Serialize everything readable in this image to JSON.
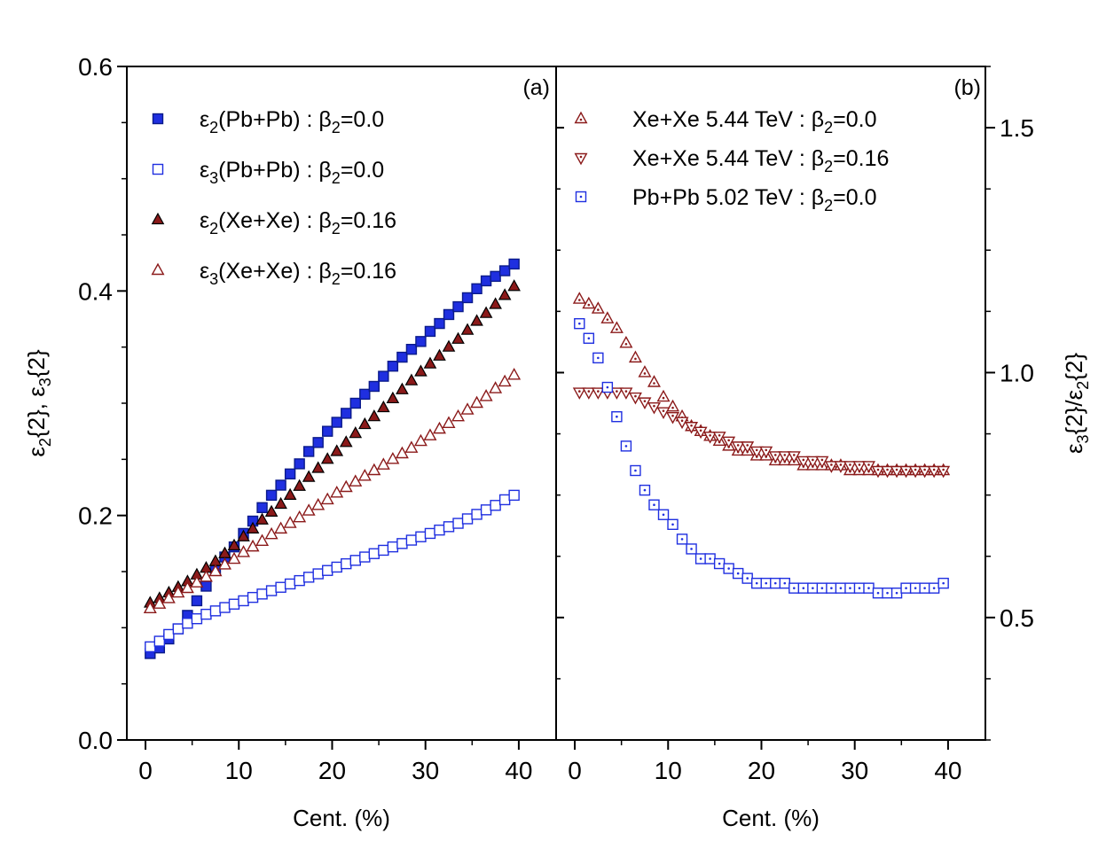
{
  "chart_data": [
    {
      "panel": "(a)",
      "type": "scatter",
      "xlabel": "Cent. (%)",
      "ylabel": {
        "main": "ε",
        "sub": "2",
        "mid": "{2}, ε",
        "sub2": "3",
        "tail": "{2}"
      },
      "xlim": [
        -2,
        44
      ],
      "ylim": [
        0.0,
        0.6
      ],
      "xticks": [
        0,
        10,
        20,
        30,
        40
      ],
      "xtick_labels": [
        "0",
        "10",
        "20",
        "30",
        "40"
      ],
      "yticks": [
        0.0,
        0.2,
        0.4,
        0.6
      ],
      "ytick_labels": [
        "0.0",
        "0.2",
        "0.4",
        "0.6"
      ],
      "legend_position": "top-left",
      "series": [
        {
          "name": "ε2(Pb+Pb) : β2=0.0",
          "label": {
            "pre": "ε",
            "sub": "2",
            "mid": "(Pb+Pb) : β",
            "sub2": "2",
            "tail": "=0.0"
          },
          "marker": "square",
          "filled": true,
          "color": "#1f2fe0",
          "x": [
            0.5,
            1.5,
            2.5,
            3.5,
            4.5,
            5.5,
            6.5,
            7.5,
            8.5,
            9.5,
            10.5,
            11.5,
            12.5,
            13.5,
            14.5,
            15.5,
            16.5,
            17.5,
            18.5,
            19.5,
            20.5,
            21.5,
            22.5,
            23.5,
            24.5,
            25.5,
            26.5,
            27.5,
            28.5,
            29.5,
            30.5,
            31.5,
            32.5,
            33.5,
            34.5,
            35.5,
            36.5,
            37.5,
            38.5,
            39.5
          ],
          "values": [
            0.077,
            0.082,
            0.09,
            0.099,
            0.111,
            0.124,
            0.137,
            0.151,
            0.163,
            0.172,
            0.184,
            0.195,
            0.207,
            0.218,
            0.227,
            0.237,
            0.246,
            0.257,
            0.265,
            0.275,
            0.283,
            0.291,
            0.3,
            0.308,
            0.315,
            0.324,
            0.333,
            0.341,
            0.348,
            0.355,
            0.364,
            0.371,
            0.379,
            0.386,
            0.394,
            0.402,
            0.409,
            0.413,
            0.418,
            0.424
          ]
        },
        {
          "name": "ε3(Pb+Pb) : β2=0.0",
          "label": {
            "pre": "ε",
            "sub": "3",
            "mid": "(Pb+Pb) : β",
            "sub2": "2",
            "tail": "=0.0"
          },
          "marker": "square",
          "filled": false,
          "color": "#1f2fe0",
          "x": [
            0.5,
            1.5,
            2.5,
            3.5,
            4.5,
            5.5,
            6.5,
            7.5,
            8.5,
            9.5,
            10.5,
            11.5,
            12.5,
            13.5,
            14.5,
            15.5,
            16.5,
            17.5,
            18.5,
            19.5,
            20.5,
            21.5,
            22.5,
            23.5,
            24.5,
            25.5,
            26.5,
            27.5,
            28.5,
            29.5,
            30.5,
            31.5,
            32.5,
            33.5,
            34.5,
            35.5,
            36.5,
            37.5,
            38.5,
            39.5
          ],
          "values": [
            0.083,
            0.088,
            0.094,
            0.099,
            0.104,
            0.108,
            0.112,
            0.115,
            0.118,
            0.121,
            0.124,
            0.127,
            0.13,
            0.133,
            0.136,
            0.139,
            0.142,
            0.145,
            0.148,
            0.151,
            0.154,
            0.157,
            0.16,
            0.163,
            0.166,
            0.169,
            0.172,
            0.175,
            0.178,
            0.181,
            0.184,
            0.187,
            0.19,
            0.193,
            0.197,
            0.201,
            0.205,
            0.209,
            0.214,
            0.218
          ]
        },
        {
          "name": "ε2(Xe+Xe) : β2=0.16",
          "label": {
            "pre": "ε",
            "sub": "2",
            "mid": "(Xe+Xe) : β",
            "sub2": "2",
            "tail": "=0.16"
          },
          "marker": "triangle-up",
          "filled": true,
          "color": "#8b1a1a",
          "x": [
            0.5,
            1.5,
            2.5,
            3.5,
            4.5,
            5.5,
            6.5,
            7.5,
            8.5,
            9.5,
            10.5,
            11.5,
            12.5,
            13.5,
            14.5,
            15.5,
            16.5,
            17.5,
            18.5,
            19.5,
            20.5,
            21.5,
            22.5,
            23.5,
            24.5,
            25.5,
            26.5,
            27.5,
            28.5,
            29.5,
            30.5,
            31.5,
            32.5,
            33.5,
            34.5,
            35.5,
            36.5,
            37.5,
            38.5,
            39.5
          ],
          "values": [
            0.122,
            0.126,
            0.131,
            0.136,
            0.141,
            0.147,
            0.153,
            0.159,
            0.166,
            0.173,
            0.181,
            0.188,
            0.196,
            0.203,
            0.21,
            0.218,
            0.226,
            0.234,
            0.242,
            0.25,
            0.257,
            0.265,
            0.273,
            0.281,
            0.288,
            0.296,
            0.304,
            0.312,
            0.32,
            0.328,
            0.335,
            0.342,
            0.35,
            0.357,
            0.365,
            0.373,
            0.38,
            0.388,
            0.396,
            0.404
          ]
        },
        {
          "name": "ε3(Xe+Xe) : β2=0.16",
          "label": {
            "pre": "ε",
            "sub": "3",
            "mid": "(Xe+Xe) : β",
            "sub2": "2",
            "tail": "=0.16"
          },
          "marker": "triangle-up",
          "filled": false,
          "color": "#8b1a1a",
          "x": [
            0.5,
            1.5,
            2.5,
            3.5,
            4.5,
            5.5,
            6.5,
            7.5,
            8.5,
            9.5,
            10.5,
            11.5,
            12.5,
            13.5,
            14.5,
            15.5,
            16.5,
            17.5,
            18.5,
            19.5,
            20.5,
            21.5,
            22.5,
            23.5,
            24.5,
            25.5,
            26.5,
            27.5,
            28.5,
            29.5,
            30.5,
            31.5,
            32.5,
            33.5,
            34.5,
            35.5,
            36.5,
            37.5,
            38.5,
            39.5
          ],
          "values": [
            0.117,
            0.121,
            0.126,
            0.131,
            0.135,
            0.14,
            0.145,
            0.15,
            0.156,
            0.161,
            0.167,
            0.172,
            0.177,
            0.183,
            0.188,
            0.193,
            0.198,
            0.204,
            0.209,
            0.214,
            0.22,
            0.225,
            0.23,
            0.235,
            0.24,
            0.245,
            0.25,
            0.255,
            0.26,
            0.266,
            0.271,
            0.277,
            0.282,
            0.288,
            0.294,
            0.3,
            0.306,
            0.313,
            0.319,
            0.325
          ]
        }
      ]
    },
    {
      "panel": "(b)",
      "type": "scatter",
      "xlabel": "Cent. (%)",
      "ylabel": {
        "main": "ε",
        "sub": "3",
        "mid": "{2}/ε",
        "sub2": "2",
        "tail": "{2}"
      },
      "xlim": [
        -2,
        44
      ],
      "ylim": [
        0.25,
        1.625
      ],
      "xticks": [
        0,
        10,
        20,
        30,
        40
      ],
      "xtick_labels": [
        "0",
        "10",
        "20",
        "30",
        "40"
      ],
      "yticks": [
        0.5,
        1.0,
        1.5
      ],
      "ytick_labels": [
        "0.5",
        "1.0",
        "1.5"
      ],
      "yaxis_side": "right",
      "legend_position": "top-left",
      "series": [
        {
          "name": "Xe+Xe 5.44 TeV : β2=0.0",
          "label": {
            "pre": "Xe+Xe 5.44 TeV : β",
            "sub": "2",
            "tail": "=0.0"
          },
          "marker": "triangle-up-dot",
          "filled": false,
          "color": "#8b1a1a",
          "x": [
            0.5,
            1.5,
            2.5,
            3.5,
            4.5,
            5.5,
            6.5,
            7.5,
            8.5,
            9.5,
            10.5,
            11.5,
            12.5,
            13.5,
            14.5,
            15.5,
            16.5,
            17.5,
            18.5,
            19.5,
            20.5,
            21.5,
            22.5,
            23.5,
            24.5,
            25.5,
            26.5,
            27.5,
            28.5,
            29.5,
            30.5,
            31.5,
            32.5,
            33.5,
            34.5,
            35.5,
            36.5,
            37.5,
            38.5,
            39.5
          ],
          "values": [
            1.15,
            1.14,
            1.13,
            1.11,
            1.09,
            1.06,
            1.03,
            1.0,
            0.98,
            0.95,
            0.93,
            0.91,
            0.89,
            0.88,
            0.87,
            0.86,
            0.85,
            0.84,
            0.84,
            0.83,
            0.83,
            0.82,
            0.82,
            0.82,
            0.81,
            0.81,
            0.81,
            0.81,
            0.81,
            0.8,
            0.8,
            0.8,
            0.8,
            0.8,
            0.8,
            0.8,
            0.8,
            0.8,
            0.8,
            0.8
          ]
        },
        {
          "name": "Xe+Xe 5.44 TeV : β2=0.16",
          "label": {
            "pre": "Xe+Xe 5.44 TeV : β",
            "sub": "2",
            "tail": "=0.16"
          },
          "marker": "triangle-down-dot",
          "filled": false,
          "color": "#8b1a1a",
          "x": [
            0.5,
            1.5,
            2.5,
            3.5,
            4.5,
            5.5,
            6.5,
            7.5,
            8.5,
            9.5,
            10.5,
            11.5,
            12.5,
            13.5,
            14.5,
            15.5,
            16.5,
            17.5,
            18.5,
            19.5,
            20.5,
            21.5,
            22.5,
            23.5,
            24.5,
            25.5,
            26.5,
            27.5,
            28.5,
            29.5,
            30.5,
            31.5,
            32.5,
            33.5,
            34.5,
            35.5,
            36.5,
            37.5,
            38.5,
            39.5
          ],
          "values": [
            0.96,
            0.96,
            0.96,
            0.96,
            0.96,
            0.96,
            0.95,
            0.94,
            0.93,
            0.92,
            0.91,
            0.9,
            0.89,
            0.88,
            0.87,
            0.87,
            0.86,
            0.85,
            0.85,
            0.84,
            0.84,
            0.83,
            0.83,
            0.83,
            0.82,
            0.82,
            0.82,
            0.81,
            0.81,
            0.81,
            0.81,
            0.81,
            0.8,
            0.8,
            0.8,
            0.8,
            0.8,
            0.8,
            0.8,
            0.8
          ]
        },
        {
          "name": "Pb+Pb 5.02 TeV : β2=0.0",
          "label": {
            "pre": "Pb+Pb 5.02 TeV : β",
            "sub": "2",
            "tail": "=0.0"
          },
          "marker": "square-dot",
          "filled": false,
          "color": "#1f2fe0",
          "x": [
            0.5,
            1.5,
            2.5,
            3.5,
            4.5,
            5.5,
            6.5,
            7.5,
            8.5,
            9.5,
            10.5,
            11.5,
            12.5,
            13.5,
            14.5,
            15.5,
            16.5,
            17.5,
            18.5,
            19.5,
            20.5,
            21.5,
            22.5,
            23.5,
            24.5,
            25.5,
            26.5,
            27.5,
            28.5,
            29.5,
            30.5,
            31.5,
            32.5,
            33.5,
            34.5,
            35.5,
            36.5,
            37.5,
            38.5,
            39.5
          ],
          "values": [
            1.1,
            1.07,
            1.03,
            0.97,
            0.91,
            0.85,
            0.8,
            0.76,
            0.73,
            0.71,
            0.69,
            0.66,
            0.64,
            0.62,
            0.62,
            0.61,
            0.6,
            0.59,
            0.58,
            0.57,
            0.57,
            0.57,
            0.57,
            0.56,
            0.56,
            0.56,
            0.56,
            0.56,
            0.56,
            0.56,
            0.56,
            0.56,
            0.55,
            0.55,
            0.55,
            0.56,
            0.56,
            0.56,
            0.56,
            0.57
          ]
        }
      ]
    }
  ]
}
